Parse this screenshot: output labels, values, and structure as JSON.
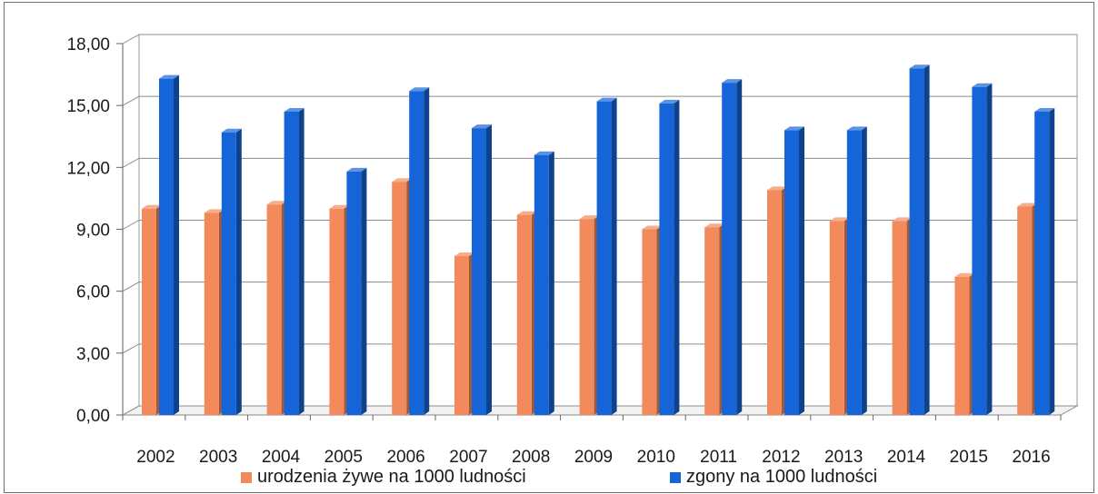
{
  "chart_data": {
    "type": "bar",
    "categories": [
      "2002",
      "2003",
      "2004",
      "2005",
      "2006",
      "2007",
      "2008",
      "2009",
      "2010",
      "2011",
      "2012",
      "2013",
      "2014",
      "2015",
      "2016"
    ],
    "series": [
      {
        "name": "urodzenia żywe na 1000 ludności",
        "color": "#f28a5c",
        "values": [
          10.0,
          9.8,
          10.2,
          10.0,
          11.3,
          7.7,
          9.7,
          9.5,
          9.0,
          9.1,
          10.9,
          9.4,
          9.4,
          6.7,
          10.1
        ]
      },
      {
        "name": "zgony na 1000 ludności",
        "color": "#1565d8",
        "values": [
          16.3,
          13.7,
          14.7,
          11.8,
          15.7,
          13.9,
          12.6,
          15.2,
          15.1,
          16.1,
          13.8,
          13.8,
          16.8,
          15.9,
          14.7
        ]
      }
    ],
    "yticks": [
      "0,00",
      "3,00",
      "6,00",
      "9,00",
      "12,00",
      "15,00",
      "18,00"
    ],
    "ylim": [
      0,
      18
    ],
    "grid": true,
    "legend_position": "bottom"
  }
}
